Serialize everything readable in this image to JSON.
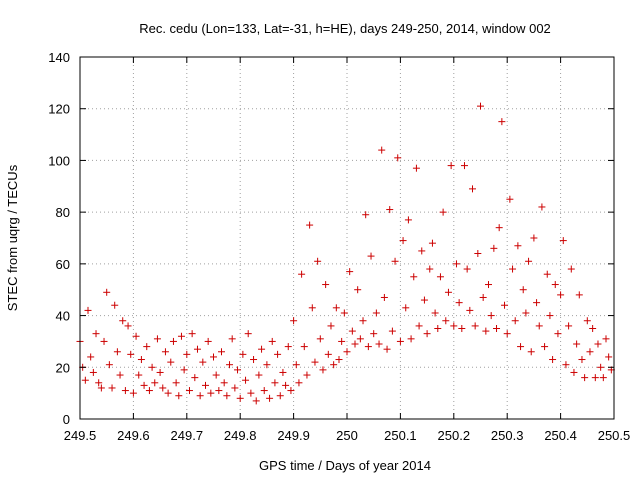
{
  "chart_data": {
    "type": "scatter",
    "title": "Rec. cedu (Lon=133, Lat=-31, h=HE), days 249-250, 2014, window 002",
    "xlabel": "GPS time / Days of year 2014",
    "ylabel": "STEC from uqrg / TECUs",
    "xlim": [
      249.5,
      250.5
    ],
    "ylim": [
      0,
      140
    ],
    "x_ticks": [
      249.5,
      249.6,
      249.7,
      249.8,
      249.9,
      250.0,
      250.1,
      250.2,
      250.3,
      250.4,
      250.5
    ],
    "x_tick_labels": [
      "249.5",
      "249.6",
      "249.7",
      "249.8",
      "249.9",
      "250",
      "250.1",
      "250.2",
      "250.3",
      "250.4",
      "250.5"
    ],
    "y_ticks": [
      0,
      20,
      40,
      60,
      80,
      100,
      120,
      140
    ],
    "y_tick_labels": [
      "0",
      "20",
      "40",
      "60",
      "80",
      "100",
      "120",
      "140"
    ],
    "grid": true,
    "marker": "plus",
    "color": "#cc0000",
    "points": [
      [
        249.5,
        30
      ],
      [
        249.505,
        20
      ],
      [
        249.51,
        15
      ],
      [
        249.515,
        42
      ],
      [
        249.52,
        24
      ],
      [
        249.525,
        18
      ],
      [
        249.53,
        33
      ],
      [
        249.535,
        14
      ],
      [
        249.54,
        12
      ],
      [
        249.545,
        30
      ],
      [
        249.55,
        49
      ],
      [
        249.555,
        21
      ],
      [
        249.56,
        12
      ],
      [
        249.565,
        44
      ],
      [
        249.57,
        26
      ],
      [
        249.575,
        17
      ],
      [
        249.58,
        38
      ],
      [
        249.585,
        11
      ],
      [
        249.59,
        36
      ],
      [
        249.595,
        25
      ],
      [
        249.6,
        10
      ],
      [
        249.605,
        32
      ],
      [
        249.61,
        17
      ],
      [
        249.615,
        23
      ],
      [
        249.62,
        13
      ],
      [
        249.625,
        28
      ],
      [
        249.63,
        11
      ],
      [
        249.635,
        20
      ],
      [
        249.64,
        14
      ],
      [
        249.645,
        31
      ],
      [
        249.65,
        18
      ],
      [
        249.655,
        12
      ],
      [
        249.66,
        26
      ],
      [
        249.665,
        10
      ],
      [
        249.67,
        22
      ],
      [
        249.675,
        30
      ],
      [
        249.68,
        14
      ],
      [
        249.685,
        9
      ],
      [
        249.69,
        32
      ],
      [
        249.695,
        19
      ],
      [
        249.7,
        25
      ],
      [
        249.705,
        11
      ],
      [
        249.71,
        33
      ],
      [
        249.715,
        16
      ],
      [
        249.72,
        27
      ],
      [
        249.725,
        9
      ],
      [
        249.73,
        22
      ],
      [
        249.735,
        13
      ],
      [
        249.74,
        30
      ],
      [
        249.745,
        10
      ],
      [
        249.75,
        24
      ],
      [
        249.755,
        17
      ],
      [
        249.76,
        11
      ],
      [
        249.765,
        26
      ],
      [
        249.77,
        14
      ],
      [
        249.775,
        9
      ],
      [
        249.78,
        21
      ],
      [
        249.785,
        31
      ],
      [
        249.79,
        12
      ],
      [
        249.795,
        19
      ],
      [
        249.8,
        8
      ],
      [
        249.805,
        25
      ],
      [
        249.81,
        15
      ],
      [
        249.815,
        33
      ],
      [
        249.82,
        10
      ],
      [
        249.825,
        23
      ],
      [
        249.83,
        7
      ],
      [
        249.835,
        17
      ],
      [
        249.84,
        27
      ],
      [
        249.845,
        11
      ],
      [
        249.85,
        21
      ],
      [
        249.855,
        8
      ],
      [
        249.86,
        30
      ],
      [
        249.865,
        14
      ],
      [
        249.87,
        25
      ],
      [
        249.875,
        9
      ],
      [
        249.88,
        18
      ],
      [
        249.885,
        13
      ],
      [
        249.89,
        28
      ],
      [
        249.895,
        11
      ],
      [
        249.9,
        38
      ],
      [
        249.905,
        21
      ],
      [
        249.91,
        14
      ],
      [
        249.915,
        56
      ],
      [
        249.92,
        28
      ],
      [
        249.925,
        17
      ],
      [
        249.93,
        75
      ],
      [
        249.935,
        43
      ],
      [
        249.94,
        22
      ],
      [
        249.945,
        61
      ],
      [
        249.95,
        31
      ],
      [
        249.955,
        19
      ],
      [
        249.96,
        52
      ],
      [
        249.965,
        25
      ],
      [
        249.97,
        36
      ],
      [
        249.975,
        21
      ],
      [
        249.98,
        43
      ],
      [
        249.985,
        23
      ],
      [
        249.99,
        30
      ],
      [
        249.995,
        41
      ],
      [
        250.0,
        26
      ],
      [
        250.005,
        57
      ],
      [
        250.01,
        34
      ],
      [
        250.015,
        29
      ],
      [
        250.02,
        50
      ],
      [
        250.025,
        31
      ],
      [
        250.03,
        38
      ],
      [
        250.035,
        79
      ],
      [
        250.04,
        28
      ],
      [
        250.045,
        63
      ],
      [
        250.05,
        33
      ],
      [
        250.055,
        41
      ],
      [
        250.06,
        29
      ],
      [
        250.065,
        104
      ],
      [
        250.07,
        47
      ],
      [
        250.075,
        27
      ],
      [
        250.08,
        81
      ],
      [
        250.085,
        34
      ],
      [
        250.09,
        61
      ],
      [
        250.095,
        101
      ],
      [
        250.1,
        30
      ],
      [
        250.105,
        69
      ],
      [
        250.11,
        43
      ],
      [
        250.115,
        77
      ],
      [
        250.12,
        31
      ],
      [
        250.125,
        55
      ],
      [
        250.13,
        97
      ],
      [
        250.135,
        36
      ],
      [
        250.14,
        65
      ],
      [
        250.145,
        46
      ],
      [
        250.15,
        33
      ],
      [
        250.155,
        58
      ],
      [
        250.16,
        68
      ],
      [
        250.165,
        41
      ],
      [
        250.17,
        35
      ],
      [
        250.175,
        55
      ],
      [
        250.18,
        80
      ],
      [
        250.185,
        38
      ],
      [
        250.19,
        49
      ],
      [
        250.195,
        98
      ],
      [
        250.2,
        36
      ],
      [
        250.205,
        60
      ],
      [
        250.21,
        45
      ],
      [
        250.215,
        35
      ],
      [
        250.22,
        98
      ],
      [
        250.225,
        58
      ],
      [
        250.23,
        42
      ],
      [
        250.235,
        89
      ],
      [
        250.24,
        36
      ],
      [
        250.245,
        64
      ],
      [
        250.25,
        121
      ],
      [
        250.255,
        47
      ],
      [
        250.26,
        34
      ],
      [
        250.265,
        52
      ],
      [
        250.27,
        40
      ],
      [
        250.275,
        66
      ],
      [
        250.28,
        35
      ],
      [
        250.285,
        74
      ],
      [
        250.29,
        115
      ],
      [
        250.295,
        44
      ],
      [
        250.3,
        33
      ],
      [
        250.305,
        85
      ],
      [
        250.31,
        58
      ],
      [
        250.315,
        38
      ],
      [
        250.32,
        67
      ],
      [
        250.325,
        28
      ],
      [
        250.33,
        50
      ],
      [
        250.335,
        41
      ],
      [
        250.34,
        61
      ],
      [
        250.345,
        26
      ],
      [
        250.35,
        70
      ],
      [
        250.355,
        45
      ],
      [
        250.36,
        36
      ],
      [
        250.365,
        82
      ],
      [
        250.37,
        28
      ],
      [
        250.375,
        56
      ],
      [
        250.38,
        40
      ],
      [
        250.385,
        23
      ],
      [
        250.39,
        52
      ],
      [
        250.395,
        33
      ],
      [
        250.4,
        48
      ],
      [
        250.405,
        69
      ],
      [
        250.41,
        21
      ],
      [
        250.415,
        36
      ],
      [
        250.42,
        58
      ],
      [
        250.425,
        18
      ],
      [
        250.43,
        29
      ],
      [
        250.435,
        48
      ],
      [
        250.44,
        23
      ],
      [
        250.445,
        16
      ],
      [
        250.45,
        38
      ],
      [
        250.455,
        26
      ],
      [
        250.46,
        35
      ],
      [
        250.465,
        16
      ],
      [
        250.47,
        29
      ],
      [
        250.475,
        20
      ],
      [
        250.48,
        16
      ],
      [
        250.485,
        31
      ],
      [
        250.49,
        24
      ],
      [
        250.495,
        19
      ]
    ]
  }
}
